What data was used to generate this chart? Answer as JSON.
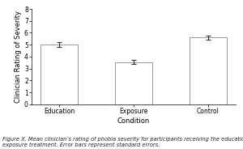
{
  "categories": [
    "Education",
    "Exposure",
    "Control"
  ],
  "values": [
    5.0,
    3.55,
    5.6
  ],
  "errors": [
    0.22,
    0.2,
    0.18
  ],
  "bar_color": "#ffffff",
  "bar_edgecolor": "#888888",
  "bar_width": 0.5,
  "ylabel": "Clinician Rating of Severity",
  "xlabel": "Condition",
  "ylim": [
    0,
    8
  ],
  "yticks": [
    0,
    1,
    2,
    3,
    4,
    5,
    6,
    7,
    8
  ],
  "background_color": "#ffffff",
  "caption_line1": "Figure X. Mean clinician’s rating of phobia severity for participants receiving the education treatment and the",
  "caption_line2": "exposure treatment. Error bars represent standard errors.",
  "caption_fontsize": 4.8,
  "axis_label_fontsize": 6.0,
  "tick_fontsize": 5.5,
  "errorbar_color": "#333333",
  "errorbar_linewidth": 0.8,
  "errorbar_capsize": 2.5,
  "spine_linewidth": 0.5
}
